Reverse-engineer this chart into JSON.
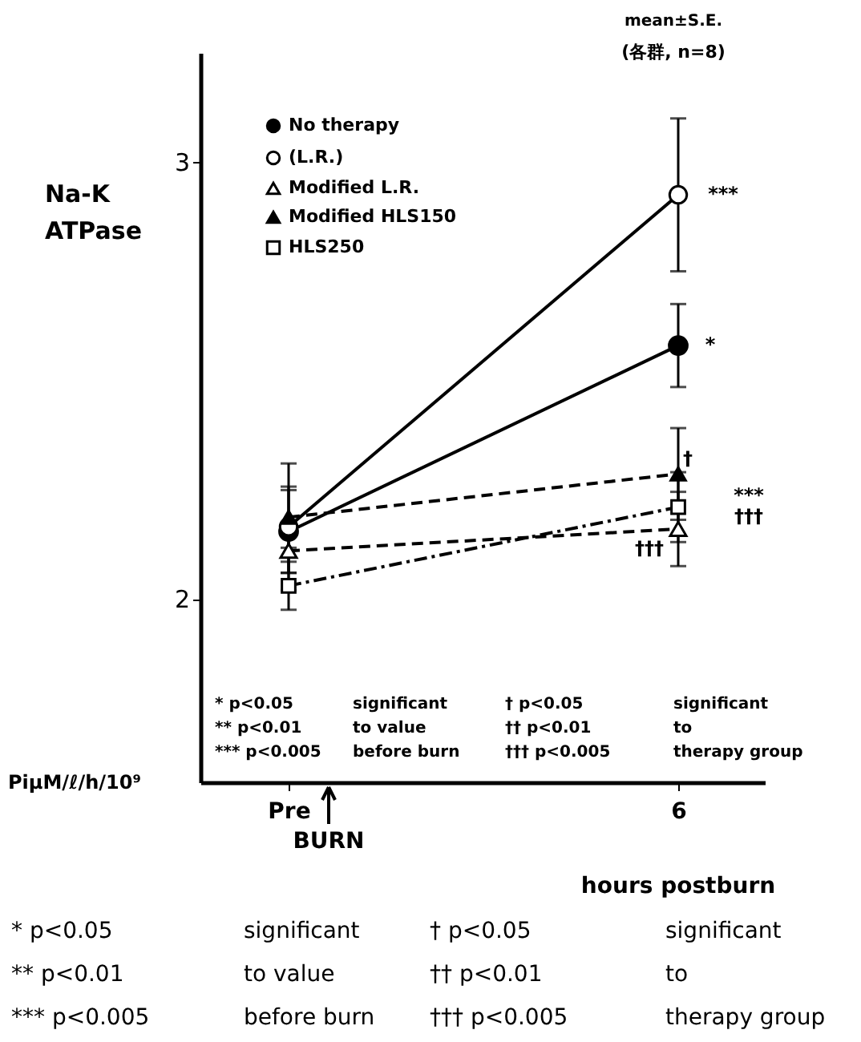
{
  "chart_data": {
    "type": "line",
    "ylabel": "Na-K ATPase",
    "xlabel": "hours postburn",
    "categories": [
      "Pre",
      "6"
    ],
    "ylim": [
      1.58,
      3.25
    ],
    "yticks": [
      2,
      3
    ],
    "grid": false,
    "legend": "top left",
    "series": [
      {
        "name": "No therapy",
        "color": "#000000",
        "colors": [
          "#000000",
          "#000000"
        ],
        "marker": "circle",
        "line_style": "solid",
        "values": [
          2.154,
          2.58
        ],
        "errors": [
          0.095,
          0.095
        ]
      },
      {
        "name": "(L.R.)",
        "color": "#000000",
        "colors": [
          "#ffffff",
          "#ffffff"
        ],
        "marker": "circle",
        "line_style": "solid",
        "values": [
          2.165,
          2.925
        ],
        "errors": [
          0.145,
          0.175
        ]
      },
      {
        "name": "Modified L.R.",
        "color": "#000000",
        "colors": [
          "#ffffff",
          "#ffffff"
        ],
        "marker": "triangle",
        "line_style": "dashed",
        "values": [
          2.11,
          2.16
        ],
        "errors": [
          0.05,
          0.085
        ]
      },
      {
        "name": "Modified HLS150",
        "color": "#000000",
        "colors": [
          "#000000",
          "#000000"
        ],
        "marker": "triangle",
        "line_style": "dashed",
        "values": [
          2.187,
          2.286
        ],
        "errors": [
          0.07,
          0.105
        ]
      },
      {
        "name": "HLS250",
        "color": "#000000",
        "colors": [
          "#ffffff",
          "#ffffff"
        ],
        "marker": "square",
        "line_style": "dashdot",
        "values": [
          2.03,
          2.21
        ],
        "errors": [
          0.055,
          0.08
        ]
      }
    ],
    "annotations": [
      "mean±S.E.",
      "(各群, n=8)",
      "PiμM/ℓ/h/10⁹",
      "BURN",
      "*",
      "***",
      "†",
      "***",
      "†††",
      "†††",
      "* p<0.05",
      "significant",
      "† p<0.05",
      "significant",
      "** p<0.01",
      "to value",
      "†† p<0.01",
      "to",
      "*** p<0.005",
      "before burn",
      "††† p<0.005",
      "therapy group",
      "* p<0.05",
      "significant",
      "† p<0.05",
      "significant",
      "** p<0.01",
      "to value",
      "†† p<0.01",
      "to",
      "*** p<0.005",
      "before burn",
      "††† p<0.005",
      "therapy group"
    ]
  }
}
